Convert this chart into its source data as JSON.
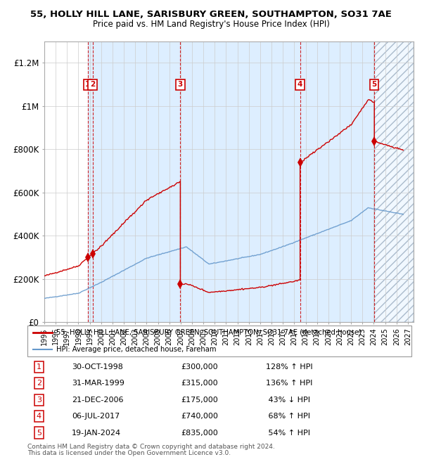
{
  "title1": "55, HOLLY HILL LANE, SARISBURY GREEN, SOUTHAMPTON, SO31 7AE",
  "title2": "Price paid vs. HM Land Registry's House Price Index (HPI)",
  "xlim_start": 1995.0,
  "xlim_end": 2027.5,
  "ylim_min": 0,
  "ylim_max": 1300000,
  "yticks": [
    0,
    200000,
    400000,
    600000,
    800000,
    1000000,
    1200000
  ],
  "ytick_labels": [
    "£0",
    "£200K",
    "£400K",
    "£600K",
    "£800K",
    "£1M",
    "£1.2M"
  ],
  "transactions": [
    {
      "num": 1,
      "date_x": 1998.83,
      "price": 300000,
      "label": "30-OCT-1998",
      "pct": "128%",
      "dir": "↑"
    },
    {
      "num": 2,
      "date_x": 1999.25,
      "price": 315000,
      "label": "31-MAR-1999",
      "pct": "136%",
      "dir": "↑"
    },
    {
      "num": 3,
      "date_x": 2006.97,
      "price": 175000,
      "label": "21-DEC-2006",
      "pct": "43%",
      "dir": "↓"
    },
    {
      "num": 4,
      "date_x": 2017.51,
      "price": 740000,
      "label": "06-JUL-2017",
      "pct": "68%",
      "dir": "↑"
    },
    {
      "num": 5,
      "date_x": 2024.05,
      "price": 835000,
      "label": "19-JAN-2024",
      "pct": "54%",
      "dir": "↑"
    }
  ],
  "legend_line1": "55, HOLLY HILL LANE, SARISBURY GREEN, SOUTHAMPTON, SO31 7AE (detached house)",
  "legend_line2": "HPI: Average price, detached house, Fareham",
  "footer1": "Contains HM Land Registry data © Crown copyright and database right 2024.",
  "footer2": "This data is licensed under the Open Government Licence v3.0.",
  "red_color": "#cc0000",
  "blue_color": "#6699cc",
  "bg_color": "#ddeeff",
  "table_rows": [
    [
      1,
      "30-OCT-1998",
      "£300,000",
      "128% ↑ HPI"
    ],
    [
      2,
      "31-MAR-1999",
      "£315,000",
      "136% ↑ HPI"
    ],
    [
      3,
      "21-DEC-2006",
      "£175,000",
      " 43% ↓ HPI"
    ],
    [
      4,
      "06-JUL-2017",
      "£740,000",
      " 68% ↑ HPI"
    ],
    [
      5,
      "19-JAN-2024",
      "£835,000",
      " 54% ↑ HPI"
    ]
  ]
}
